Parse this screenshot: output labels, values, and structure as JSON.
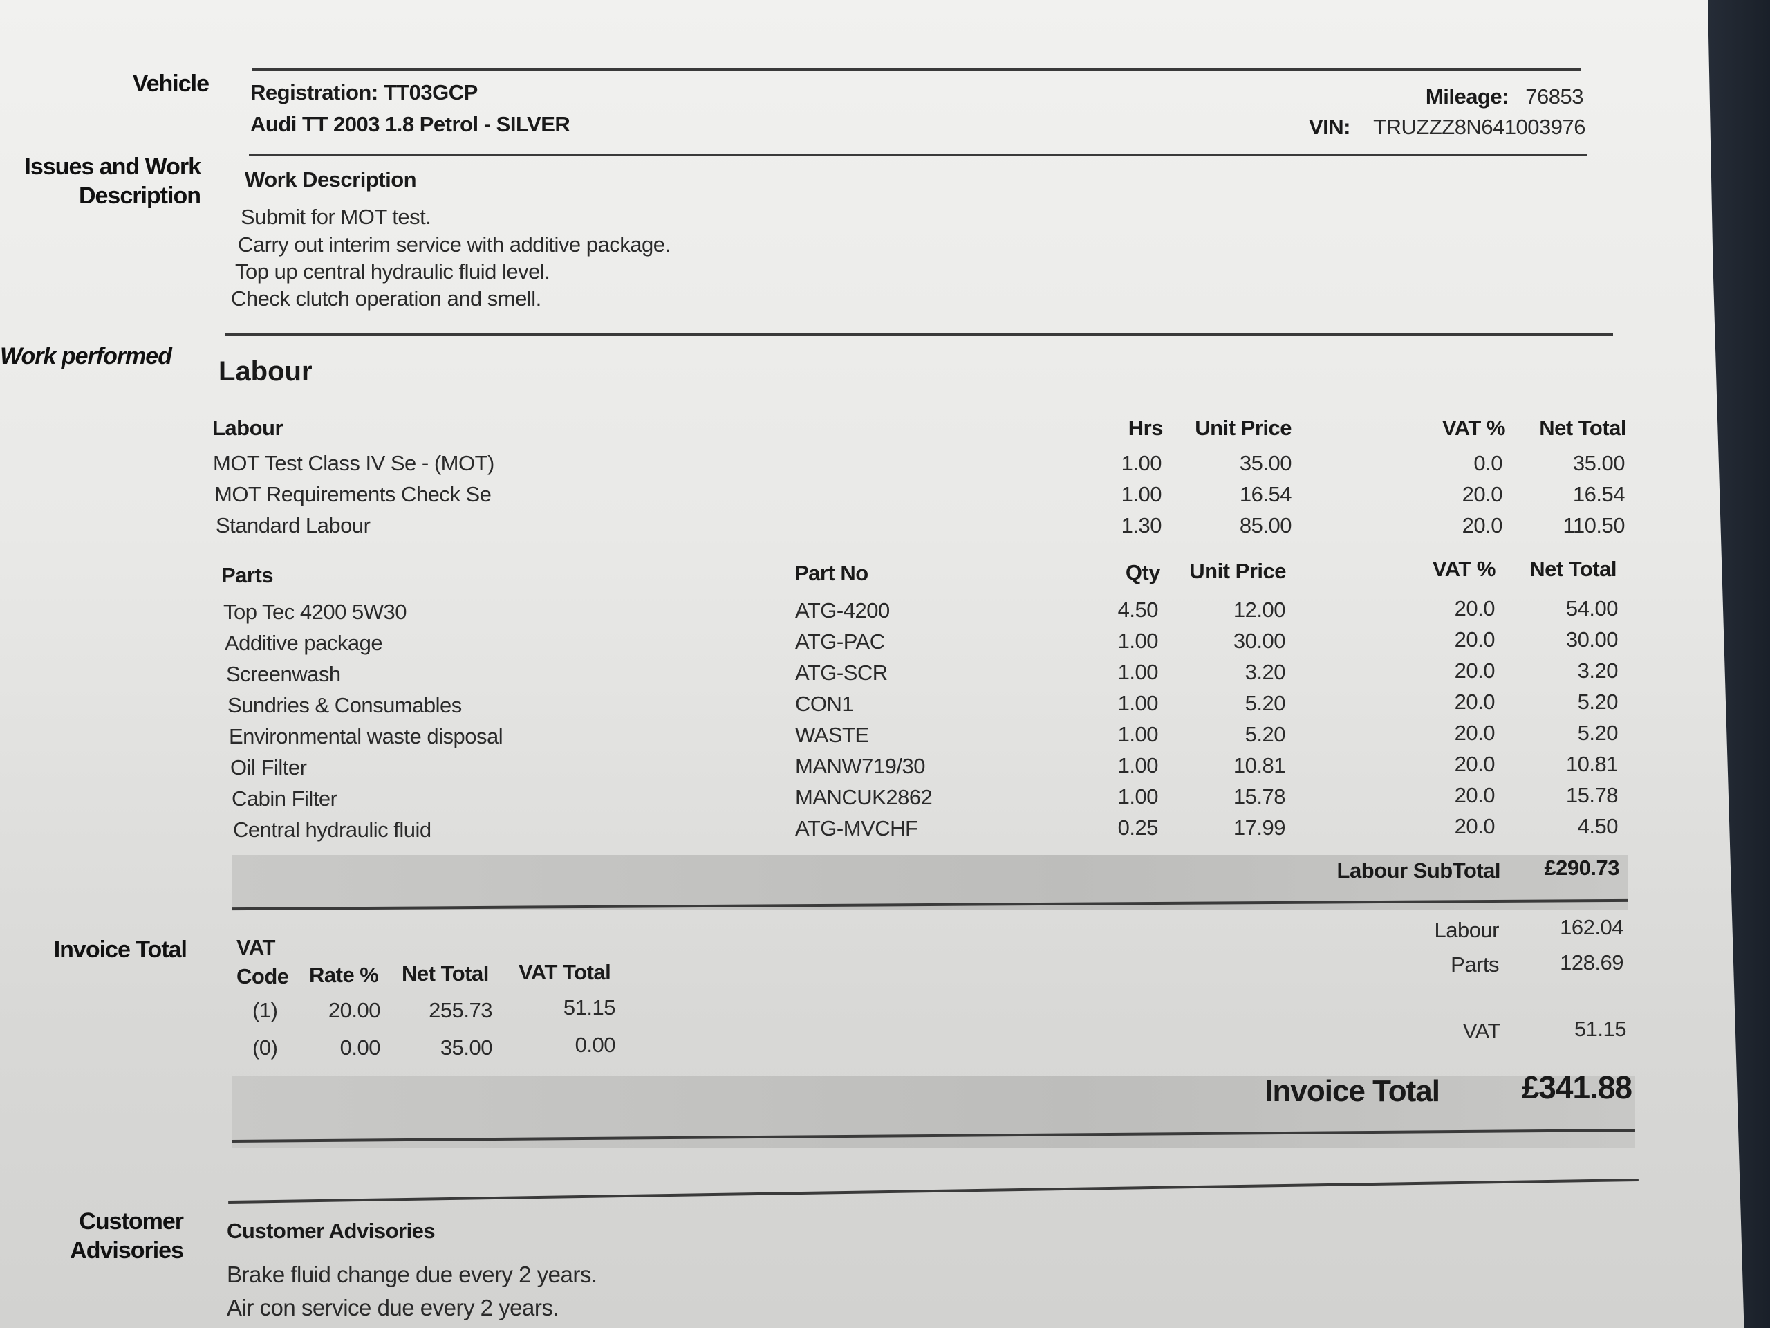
{
  "sections": {
    "vehicle": "Vehicle",
    "issues": "Issues and Work Description",
    "work_performed": "Work performed",
    "invoice_total": "Invoice Total",
    "customer_advisories": "Customer Advisories"
  },
  "vehicle": {
    "registration_label": "Registration:",
    "registration": "TT03GCP",
    "description": "Audi TT  2003 1.8 Petrol - SILVER",
    "mileage_label": "Mileage:",
    "mileage": "76853",
    "vin_label": "VIN:",
    "vin": "TRUZZZ8N641003976"
  },
  "work": {
    "heading": "Work Description",
    "lines": [
      "Submit for MOT test.",
      "Carry out interim service with additive package.",
      "Top up central hydraulic fluid level.",
      "Check clutch operation and smell."
    ]
  },
  "labour": {
    "heading": "Labour",
    "columns": {
      "desc": "Labour",
      "hrs": "Hrs",
      "unit_price": "Unit Price",
      "vat": "VAT %",
      "net": "Net Total"
    },
    "rows": [
      {
        "desc": "MOT Test Class IV Se - (MOT)",
        "hrs": "1.00",
        "unit_price": "35.00",
        "vat": "0.0",
        "net": "35.00"
      },
      {
        "desc": "MOT Requirements Check Se",
        "hrs": "1.00",
        "unit_price": "16.54",
        "vat": "20.0",
        "net": "16.54"
      },
      {
        "desc": "Standard Labour",
        "hrs": "1.30",
        "unit_price": "85.00",
        "vat": "20.0",
        "net": "110.50"
      }
    ]
  },
  "parts": {
    "columns": {
      "desc": "Parts",
      "part_no": "Part No",
      "qty": "Qty",
      "unit_price": "Unit Price",
      "vat": "VAT %",
      "net": "Net Total"
    },
    "rows": [
      {
        "desc": "Top Tec 4200 5W30",
        "part_no": "ATG-4200",
        "qty": "4.50",
        "unit_price": "12.00",
        "vat": "20.0",
        "net": "54.00"
      },
      {
        "desc": "Additive package",
        "part_no": "ATG-PAC",
        "qty": "1.00",
        "unit_price": "30.00",
        "vat": "20.0",
        "net": "30.00"
      },
      {
        "desc": "Screenwash",
        "part_no": "ATG-SCR",
        "qty": "1.00",
        "unit_price": "3.20",
        "vat": "20.0",
        "net": "3.20"
      },
      {
        "desc": "Sundries & Consumables",
        "part_no": "CON1",
        "qty": "1.00",
        "unit_price": "5.20",
        "vat": "20.0",
        "net": "5.20"
      },
      {
        "desc": "Environmental waste disposal",
        "part_no": "WASTE",
        "qty": "1.00",
        "unit_price": "5.20",
        "vat": "20.0",
        "net": "5.20"
      },
      {
        "desc": "Oil Filter",
        "part_no": "MANW719/30",
        "qty": "1.00",
        "unit_price": "10.81",
        "vat": "20.0",
        "net": "10.81"
      },
      {
        "desc": "Cabin Filter",
        "part_no": "MANCUK2862",
        "qty": "1.00",
        "unit_price": "15.78",
        "vat": "20.0",
        "net": "15.78"
      },
      {
        "desc": "Central hydraulic fluid",
        "part_no": "ATG-MVCHF",
        "qty": "0.25",
        "unit_price": "17.99",
        "vat": "20.0",
        "net": "4.50"
      }
    ]
  },
  "subtotal": {
    "label": "Labour SubTotal",
    "value": "£290.73"
  },
  "summary": {
    "labour_label": "Labour",
    "labour": "162.04",
    "parts_label": "Parts",
    "parts": "128.69",
    "vat_label": "VAT",
    "vat": "51.15"
  },
  "vat_table": {
    "heading": "VAT",
    "columns": {
      "code": "Code",
      "rate": "Rate %",
      "net": "Net Total",
      "vat": "VAT Total"
    },
    "rows": [
      {
        "code": "(1)",
        "rate": "20.00",
        "net": "255.73",
        "vat": "51.15"
      },
      {
        "code": "(0)",
        "rate": "0.00",
        "net": "35.00",
        "vat": "0.00"
      }
    ]
  },
  "invoice_total": {
    "label": "Invoice Total",
    "value": "£341.88"
  },
  "advisories": {
    "heading": "Customer Advisories",
    "lines": [
      "Brake fluid change due every 2 years.",
      "Air con service due every 2 years."
    ]
  }
}
